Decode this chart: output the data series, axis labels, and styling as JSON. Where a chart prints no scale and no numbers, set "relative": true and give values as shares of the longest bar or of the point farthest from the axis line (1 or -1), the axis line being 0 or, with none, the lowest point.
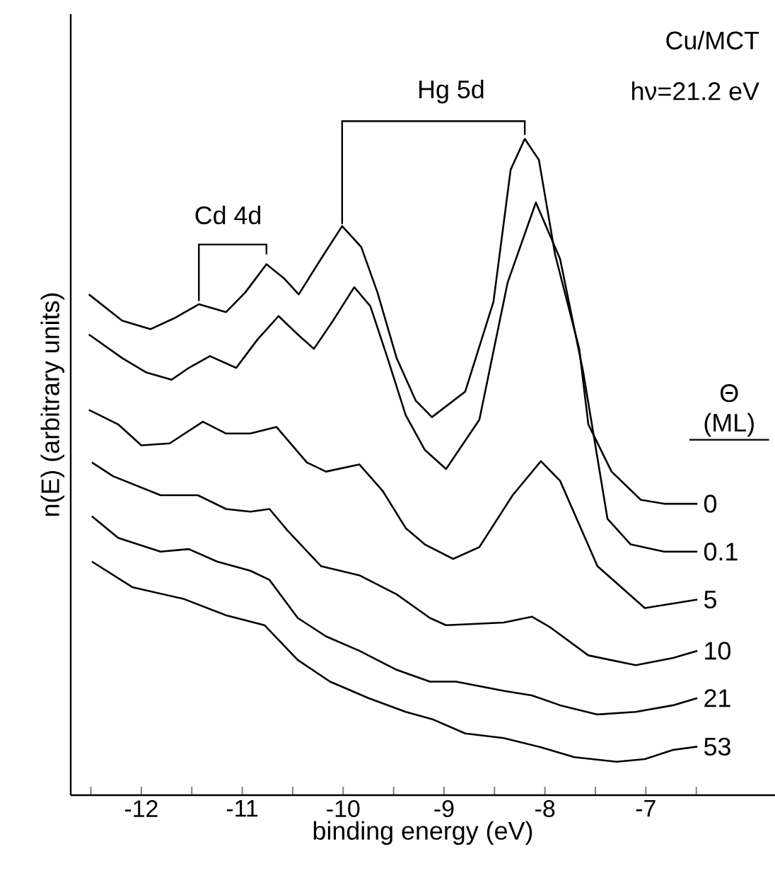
{
  "chart_data": {
    "type": "line",
    "title": "Cu/MCT",
    "subtitle": "hν=21.2 eV",
    "xlabel": "binding energy (eV)",
    "ylabel": "n(E) (arbitrary units)",
    "legend_title": "Θ (ML)",
    "relative": true,
    "xlim": [
      -12.7,
      -5.72
    ],
    "xticks": [
      {
        "value": -12.5,
        "label": null
      },
      -12,
      {
        "value": -11.5,
        "label": null
      },
      -11,
      {
        "value": -10.5,
        "label": null
      },
      -10,
      {
        "value": -9.5,
        "label": null
      },
      -9,
      {
        "value": -8.5,
        "label": null
      },
      -8,
      {
        "value": -7.5,
        "label": null
      },
      -7,
      {
        "value": -6.5,
        "label": null
      }
    ],
    "annotations": [
      "Cd 4d",
      "Hg 5d"
    ],
    "series": [
      {
        "name": "0",
        "color": "#000000",
        "x": [
          -12.52,
          -12.19,
          -11.91,
          -11.67,
          -11.43,
          -11.16,
          -10.97,
          -10.76,
          -10.59,
          -10.44,
          -10.22,
          -10.01,
          -9.82,
          -9.66,
          -9.47,
          -9.28,
          -9.12,
          -8.79,
          -8.51,
          -8.34,
          -8.2,
          -8.06,
          -7.9,
          -7.66,
          -7.57,
          -7.34,
          -7.05,
          -6.82,
          -6.49
        ],
        "values": [
          0.763,
          0.723,
          0.71,
          0.727,
          0.748,
          0.736,
          0.766,
          0.809,
          0.788,
          0.763,
          0.817,
          0.867,
          0.835,
          0.766,
          0.666,
          0.601,
          0.576,
          0.615,
          0.752,
          0.953,
          1.0,
          0.968,
          0.824,
          0.68,
          0.565,
          0.493,
          0.45,
          0.444,
          0.444
        ]
      },
      {
        "name": "0.1",
        "color": "#000000",
        "x": [
          -12.52,
          -12.19,
          -11.95,
          -11.7,
          -11.53,
          -11.32,
          -11.06,
          -10.85,
          -10.64,
          -10.45,
          -10.29,
          -10.1,
          -9.89,
          -9.73,
          -9.56,
          -9.38,
          -9.19,
          -8.98,
          -8.65,
          -8.37,
          -8.09,
          -7.85,
          -7.62,
          -7.38,
          -7.15,
          -6.82,
          -6.49
        ],
        "values": [
          0.702,
          0.666,
          0.644,
          0.633,
          0.651,
          0.669,
          0.651,
          0.694,
          0.73,
          0.702,
          0.68,
          0.723,
          0.774,
          0.745,
          0.666,
          0.579,
          0.526,
          0.497,
          0.572,
          0.781,
          0.903,
          0.817,
          0.644,
          0.421,
          0.382,
          0.371,
          0.371
        ]
      },
      {
        "name": "5",
        "color": "#000000",
        "x": [
          -12.52,
          -12.23,
          -12.0,
          -11.72,
          -11.39,
          -11.16,
          -10.92,
          -10.66,
          -10.36,
          -10.17,
          -9.84,
          -9.61,
          -9.38,
          -9.19,
          -8.91,
          -8.65,
          -8.32,
          -8.04,
          -7.85,
          -7.48,
          -7.01,
          -6.49
        ],
        "values": [
          0.587,
          0.565,
          0.533,
          0.536,
          0.569,
          0.551,
          0.551,
          0.561,
          0.507,
          0.493,
          0.504,
          0.464,
          0.407,
          0.382,
          0.36,
          0.378,
          0.457,
          0.509,
          0.479,
          0.349,
          0.285,
          0.298
        ]
      },
      {
        "name": "10",
        "color": "#000000",
        "x": [
          -12.49,
          -12.28,
          -11.81,
          -11.44,
          -11.16,
          -10.92,
          -10.73,
          -10.55,
          -10.22,
          -9.84,
          -9.47,
          -9.14,
          -8.98,
          -8.41,
          -8.13,
          -7.95,
          -7.57,
          -7.1,
          -6.73,
          -6.49
        ],
        "values": [
          0.507,
          0.486,
          0.457,
          0.457,
          0.436,
          0.432,
          0.436,
          0.403,
          0.349,
          0.335,
          0.306,
          0.27,
          0.259,
          0.263,
          0.272,
          0.256,
          0.213,
          0.198,
          0.209,
          0.22
        ]
      },
      {
        "name": "21",
        "color": "#000000",
        "x": [
          -12.49,
          -12.23,
          -11.81,
          -11.53,
          -11.25,
          -10.92,
          -10.73,
          -10.45,
          -10.17,
          -9.84,
          -9.47,
          -9.14,
          -8.88,
          -8.41,
          -8.13,
          -7.85,
          -7.48,
          -7.1,
          -6.73,
          -6.49
        ],
        "values": [
          0.425,
          0.392,
          0.371,
          0.375,
          0.356,
          0.342,
          0.328,
          0.27,
          0.242,
          0.22,
          0.191,
          0.173,
          0.173,
          0.159,
          0.152,
          0.137,
          0.123,
          0.127,
          0.137,
          0.148
        ]
      },
      {
        "name": "53",
        "color": "#000000",
        "x": [
          -12.49,
          -12.09,
          -11.58,
          -11.16,
          -10.78,
          -10.45,
          -10.13,
          -9.75,
          -9.38,
          -9.12,
          -8.79,
          -8.41,
          -8.04,
          -7.71,
          -7.29,
          -7.01,
          -6.73,
          -6.49
        ],
        "values": [
          0.356,
          0.317,
          0.299,
          0.274,
          0.259,
          0.206,
          0.173,
          0.148,
          0.127,
          0.116,
          0.094,
          0.087,
          0.073,
          0.058,
          0.051,
          0.055,
          0.069,
          0.074
        ]
      }
    ]
  }
}
